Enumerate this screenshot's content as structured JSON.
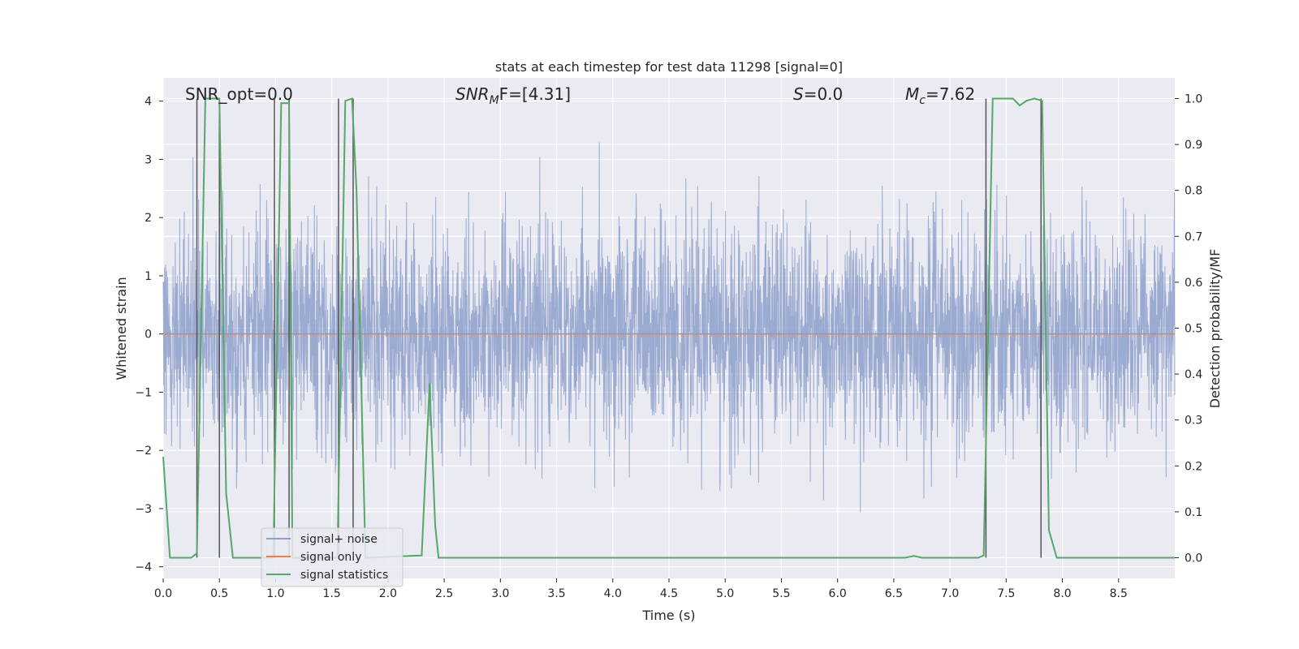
{
  "chart_data": {
    "type": "line",
    "title": "stats at each timestep for test data 11298 [signal=0]",
    "xlabel": "Time (s)",
    "ylabel": "Whitened strain",
    "y2label": "Detection probability/MF",
    "xlim": [
      0.0,
      9.0
    ],
    "ylim": [
      -4.2,
      4.4
    ],
    "y2lim": [
      -0.045,
      1.045
    ],
    "x_ticks": [
      "0.0",
      "0.5",
      "1.0",
      "1.5",
      "2.0",
      "2.5",
      "3.0",
      "3.5",
      "4.0",
      "4.5",
      "5.0",
      "5.5",
      "6.0",
      "6.5",
      "7.0",
      "7.5",
      "8.0",
      "8.5"
    ],
    "y_ticks": [
      "4",
      "3",
      "2",
      "1",
      "0",
      "−1",
      "−2",
      "−3",
      "−4"
    ],
    "y2_ticks": [
      "1.0",
      "0.9",
      "0.8",
      "0.7",
      "0.6",
      "0.5",
      "0.4",
      "0.3",
      "0.2",
      "0.1",
      "0.0"
    ],
    "grid": true,
    "legend_position": "lower-left",
    "annotations": {
      "snr_opt": "SNR_opt=0.0",
      "snr_mf_main": "SNR",
      "snr_mf_sub": "M",
      "snr_mf_tail": "F=[4.31]",
      "s_main": "S",
      "s_tail": "=0.0",
      "mc_main": "M",
      "mc_sub": "c",
      "mc_tail": "=7.62"
    },
    "series": [
      {
        "name": "signal+ noise",
        "color": "#8c9fca",
        "noise_envelope": {
          "x": [
            0.0,
            0.5,
            1.0,
            1.5,
            2.0,
            2.5,
            3.0,
            3.5,
            4.0,
            4.5,
            5.0,
            5.5,
            6.0,
            6.5,
            7.0,
            7.5,
            8.0,
            8.5,
            9.0
          ],
          "upper_peak": [
            2.4,
            3.9,
            2.9,
            3.3,
            3.4,
            2.6,
            2.9,
            3.3,
            3.4,
            3.0,
            3.7,
            2.7,
            2.9,
            2.7,
            2.6,
            2.8,
            2.6,
            2.9,
            2.8
          ],
          "lower_peak": [
            -3.2,
            -3.3,
            -2.3,
            -2.5,
            -2.6,
            -2.4,
            -3.0,
            -3.1,
            -3.0,
            -2.9,
            -3.0,
            -3.4,
            -3.4,
            -3.7,
            -3.1,
            -2.6,
            -2.9,
            -3.1,
            -2.8
          ]
        }
      },
      {
        "name": "signal only",
        "color": "#dd8452",
        "x": [
          0.0,
          9.0
        ],
        "y": [
          0.0,
          0.0
        ]
      },
      {
        "name": "signal statistics",
        "color": "#55a868",
        "axis": "right",
        "x": [
          0.0,
          0.06,
          0.25,
          0.3,
          0.375,
          0.5,
          0.56,
          0.62,
          0.98,
          1.05,
          1.12,
          1.15,
          1.55,
          1.62,
          1.68,
          1.72,
          1.8,
          2.3,
          2.37,
          2.42,
          2.45,
          6.6,
          6.68,
          6.75,
          7.25,
          7.3,
          7.38,
          7.56,
          7.62,
          7.68,
          7.75,
          7.82,
          7.88,
          7.95,
          9.0
        ],
        "y": [
          0.22,
          0.0,
          0.0,
          0.01,
          1.0,
          1.0,
          0.14,
          0.0,
          0.0,
          0.99,
          0.99,
          0.0,
          0.0,
          0.995,
          1.0,
          0.8,
          0.0,
          0.005,
          0.38,
          0.07,
          0.0,
          0.0,
          0.004,
          0.0,
          0.0,
          0.005,
          1.0,
          1.0,
          0.985,
          0.995,
          1.0,
          0.995,
          0.06,
          0.0,
          0.0
        ]
      }
    ],
    "vlines": [
      0.3,
      0.5,
      0.99,
      1.12,
      1.56,
      1.69,
      7.32,
      7.81
    ],
    "legend": [
      {
        "label": "signal+ noise",
        "color": "#8c9fca"
      },
      {
        "label": "signal only",
        "color": "#dd8452"
      },
      {
        "label": "signal statistics",
        "color": "#55a868"
      }
    ]
  }
}
